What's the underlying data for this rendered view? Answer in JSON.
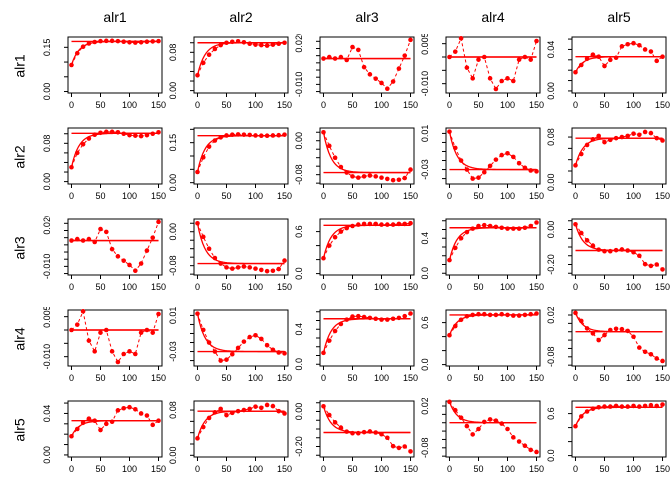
{
  "chart_data": {
    "type": "line",
    "layout": "5x5-pairwise-matrix",
    "col_titles": [
      "alr1",
      "alr2",
      "alr3",
      "alr4",
      "alr5"
    ],
    "row_titles": [
      "alr1",
      "alr2",
      "alr3",
      "alr4",
      "alr5"
    ],
    "x": [
      0,
      10,
      20,
      30,
      40,
      50,
      60,
      70,
      80,
      90,
      100,
      110,
      120,
      130,
      140,
      150
    ],
    "xticks": [
      0,
      50,
      100,
      150
    ],
    "xtick_labels": [
      "0",
      "50",
      "100",
      "150"
    ],
    "xlim": [
      -6,
      156
    ],
    "point_color": "#ff0000",
    "line_color": "#ff0000",
    "axis_color": "#000000",
    "grid": false,
    "legend": "none",
    "cells": [
      {
        "row": "alr1",
        "col": "alr1",
        "ylim": [
          -0.005,
          0.185
        ],
        "ytick_step": 0.05,
        "ylabels": [
          [
            "0.00",
            0
          ],
          [
            "0.15",
            0.15
          ]
        ],
        "ref": 0.17,
        "values": [
          0.09,
          0.13,
          0.152,
          0.163,
          0.168,
          0.171,
          0.172,
          0.172,
          0.171,
          0.169,
          0.167,
          0.166,
          0.167,
          0.169,
          0.17,
          0.171
        ]
      },
      {
        "row": "alr1",
        "col": "alr2",
        "ylim": [
          -0.005,
          0.112
        ],
        "ytick_step": 0.02,
        "ylabels": [
          [
            "0.00",
            0
          ],
          [
            "0.08",
            0.08
          ]
        ],
        "ref": 0.1,
        "values": [
          0.032,
          0.058,
          0.075,
          0.087,
          0.095,
          0.1,
          0.102,
          0.103,
          0.101,
          0.098,
          0.096,
          0.095,
          0.094,
          0.096,
          0.098,
          0.1
        ]
      },
      {
        "row": "alr1",
        "col": "alr3",
        "ylim": [
          -0.016,
          0.023
        ],
        "ytick_step": 0.005,
        "ylabels": [
          [
            "-0.010",
            -0.01
          ],
          [
            "0.020",
            0.02
          ]
        ],
        "ref": 0.008,
        "values": [
          0.008,
          0.009,
          0.008,
          0.009,
          0.007,
          0.016,
          0.014,
          0.002,
          -0.003,
          -0.006,
          -0.009,
          -0.013,
          -0.008,
          0.001,
          0.01,
          0.021
        ]
      },
      {
        "row": "alr1",
        "col": "alr4",
        "ylim": [
          -0.0135,
          0.0075
        ],
        "ytick_step": 0.005,
        "ylabels": [
          [
            "-0.010",
            -0.01
          ],
          [
            "0.005",
            0.005
          ]
        ],
        "ref": 0.0,
        "values": [
          0.0,
          0.002,
          0.007,
          -0.004,
          -0.008,
          -0.001,
          0.0,
          -0.008,
          -0.012,
          -0.009,
          -0.008,
          -0.009,
          -0.001,
          0.0,
          -0.001,
          0.006
        ]
      },
      {
        "row": "alr1",
        "col": "alr5",
        "ylim": [
          -0.002,
          0.052
        ],
        "ytick_step": 0.01,
        "ylabels": [
          [
            "0.00",
            0
          ],
          [
            "0.04",
            0.04
          ]
        ],
        "ref": 0.033,
        "values": [
          0.018,
          0.025,
          0.031,
          0.035,
          0.033,
          0.024,
          0.03,
          0.032,
          0.043,
          0.045,
          0.046,
          0.044,
          0.04,
          0.038,
          0.029,
          0.033
        ]
      },
      {
        "row": "alr2",
        "col": "alr1",
        "ylim": [
          -0.005,
          0.112
        ],
        "ytick_step": 0.02,
        "ylabels": [
          [
            "0.00",
            0
          ],
          [
            "0.08",
            0.08
          ]
        ],
        "ref": 0.101,
        "values": [
          0.03,
          0.06,
          0.078,
          0.09,
          0.098,
          0.102,
          0.104,
          0.104,
          0.103,
          0.1,
          0.097,
          0.096,
          0.095,
          0.097,
          0.1,
          0.103
        ]
      },
      {
        "row": "alr2",
        "col": "alr2",
        "ylim": [
          -0.005,
          0.205
        ],
        "ytick_step": 0.05,
        "ylabels": [
          [
            "0.00",
            0
          ],
          [
            "0.15",
            0.15
          ]
        ],
        "ref": 0.176,
        "values": [
          0.04,
          0.095,
          0.135,
          0.158,
          0.17,
          0.177,
          0.18,
          0.181,
          0.18,
          0.179,
          0.177,
          0.176,
          0.176,
          0.177,
          0.178,
          0.18
        ]
      },
      {
        "row": "alr2",
        "col": "alr3",
        "ylim": [
          -0.102,
          0.03
        ],
        "ytick_step": 0.02,
        "ylabels": [
          [
            "-0.08",
            -0.08
          ],
          [
            "0.00",
            0
          ]
        ],
        "ref": -0.075,
        "values": [
          0.02,
          -0.012,
          -0.04,
          -0.062,
          -0.075,
          -0.084,
          -0.087,
          -0.084,
          -0.082,
          -0.084,
          -0.087,
          -0.09,
          -0.093,
          -0.092,
          -0.088,
          -0.068
        ]
      },
      {
        "row": "alr2",
        "col": "alr4",
        "ylim": [
          -0.046,
          0.016
        ],
        "ytick_step": 0.01,
        "ylabels": [
          [
            "-0.03",
            -0.03
          ],
          [
            "0.01",
            0.01
          ]
        ],
        "ref": -0.03,
        "values": [
          0.012,
          -0.006,
          -0.02,
          -0.03,
          -0.04,
          -0.039,
          -0.033,
          -0.026,
          -0.019,
          -0.014,
          -0.012,
          -0.016,
          -0.023,
          -0.028,
          -0.031,
          -0.032
        ]
      },
      {
        "row": "alr2",
        "col": "alr5",
        "ylim": [
          -0.003,
          0.096
        ],
        "ytick_step": 0.02,
        "ylabels": [
          [
            "0.00",
            0
          ],
          [
            "0.08",
            0.08
          ]
        ],
        "ref": 0.078,
        "values": [
          0.03,
          0.05,
          0.066,
          0.076,
          0.082,
          0.071,
          0.075,
          0.078,
          0.08,
          0.082,
          0.086,
          0.084,
          0.089,
          0.087,
          0.078,
          0.074
        ]
      },
      {
        "row": "alr3",
        "col": "alr1",
        "ylim": [
          -0.016,
          0.023
        ],
        "ytick_step": 0.005,
        "ylabels": [
          [
            "-0.010",
            -0.01
          ],
          [
            "0.020",
            0.02
          ]
        ],
        "ref": 0.008,
        "values": [
          0.008,
          0.009,
          0.008,
          0.009,
          0.007,
          0.016,
          0.014,
          0.002,
          -0.003,
          -0.006,
          -0.009,
          -0.013,
          -0.008,
          0.001,
          0.01,
          0.021
        ]
      },
      {
        "row": "alr3",
        "col": "alr2",
        "ylim": [
          -0.102,
          0.03
        ],
        "ytick_step": 0.02,
        "ylabels": [
          [
            "-0.08",
            -0.08
          ],
          [
            "0.00",
            0
          ]
        ],
        "ref": -0.075,
        "values": [
          0.02,
          -0.012,
          -0.04,
          -0.062,
          -0.075,
          -0.084,
          -0.087,
          -0.084,
          -0.082,
          -0.084,
          -0.087,
          -0.09,
          -0.093,
          -0.092,
          -0.088,
          -0.068
        ]
      },
      {
        "row": "alr3",
        "col": "alr3",
        "ylim": [
          -0.02,
          0.78
        ],
        "ytick_step": 0.2,
        "ylabels": [
          [
            "0.0",
            0
          ],
          [
            "0.6",
            0.6
          ]
        ],
        "ref": 0.69,
        "values": [
          0.22,
          0.4,
          0.52,
          0.6,
          0.65,
          0.68,
          0.7,
          0.71,
          0.71,
          0.71,
          0.7,
          0.7,
          0.7,
          0.71,
          0.71,
          0.72
        ]
      },
      {
        "row": "alr3",
        "col": "alr4",
        "ylim": [
          -0.02,
          0.62
        ],
        "ytick_step": 0.1,
        "ylabels": [
          [
            "0.0",
            0
          ],
          [
            "0.4",
            0.4
          ]
        ],
        "ref": 0.52,
        "values": [
          0.15,
          0.29,
          0.4,
          0.47,
          0.51,
          0.54,
          0.55,
          0.54,
          0.53,
          0.52,
          0.51,
          0.51,
          0.51,
          0.52,
          0.54,
          0.58
        ]
      },
      {
        "row": "alr3",
        "col": "alr5",
        "ylim": [
          -0.26,
          0.06
        ],
        "ytick_step": 0.05,
        "ylabels": [
          [
            "-0.20",
            -0.2
          ],
          [
            "0.00",
            0
          ]
        ],
        "ref": -0.12,
        "values": [
          0.03,
          -0.02,
          -0.062,
          -0.092,
          -0.115,
          -0.124,
          -0.124,
          -0.118,
          -0.114,
          -0.12,
          -0.13,
          -0.15,
          -0.198,
          -0.208,
          -0.2,
          -0.228
        ]
      },
      {
        "row": "alr4",
        "col": "alr1",
        "ylim": [
          -0.0135,
          0.0075
        ],
        "ytick_step": 0.005,
        "ylabels": [
          [
            "-0.010",
            -0.01
          ],
          [
            "0.005",
            0.005
          ]
        ],
        "ref": 0.0,
        "values": [
          0.0,
          0.002,
          0.007,
          -0.004,
          -0.008,
          -0.001,
          0.0,
          -0.008,
          -0.012,
          -0.009,
          -0.008,
          -0.009,
          -0.001,
          0.0,
          -0.001,
          0.006
        ]
      },
      {
        "row": "alr4",
        "col": "alr2",
        "ylim": [
          -0.046,
          0.016
        ],
        "ytick_step": 0.01,
        "ylabels": [
          [
            "-0.03",
            -0.03
          ],
          [
            "0.01",
            0.01
          ]
        ],
        "ref": -0.03,
        "values": [
          0.012,
          -0.006,
          -0.02,
          -0.03,
          -0.04,
          -0.039,
          -0.033,
          -0.026,
          -0.019,
          -0.014,
          -0.012,
          -0.016,
          -0.023,
          -0.028,
          -0.031,
          -0.032
        ]
      },
      {
        "row": "alr4",
        "col": "alr3",
        "ylim": [
          -0.02,
          0.62
        ],
        "ytick_step": 0.1,
        "ylabels": [
          [
            "0.0",
            0
          ],
          [
            "0.4",
            0.4
          ]
        ],
        "ref": 0.52,
        "values": [
          0.13,
          0.27,
          0.38,
          0.46,
          0.51,
          0.545,
          0.55,
          0.54,
          0.53,
          0.52,
          0.51,
          0.51,
          0.52,
          0.53,
          0.55,
          0.58
        ]
      },
      {
        "row": "alr4",
        "col": "alr4",
        "ylim": [
          -0.02,
          0.78
        ],
        "ytick_step": 0.2,
        "ylabels": [
          [
            "0.0",
            0
          ],
          [
            "0.6",
            0.6
          ]
        ],
        "ref": 0.71,
        "values": [
          0.42,
          0.55,
          0.64,
          0.69,
          0.71,
          0.72,
          0.72,
          0.71,
          0.71,
          0.72,
          0.71,
          0.7,
          0.7,
          0.71,
          0.72,
          0.73
        ]
      },
      {
        "row": "alr4",
        "col": "alr5",
        "ylim": [
          -0.102,
          0.032
        ],
        "ytick_step": 0.02,
        "ylabels": [
          [
            "-0.08",
            -0.08
          ],
          [
            "0.02",
            0.02
          ]
        ],
        "ref": -0.02,
        "values": [
          0.025,
          0.006,
          -0.012,
          -0.024,
          -0.04,
          -0.028,
          -0.016,
          -0.013,
          -0.014,
          -0.018,
          -0.032,
          -0.058,
          -0.068,
          -0.074,
          -0.084,
          -0.09
        ]
      },
      {
        "row": "alr5",
        "col": "alr1",
        "ylim": [
          -0.002,
          0.052
        ],
        "ytick_step": 0.01,
        "ylabels": [
          [
            "0.00",
            0
          ],
          [
            "0.04",
            0.04
          ]
        ],
        "ref": 0.033,
        "values": [
          0.018,
          0.025,
          0.031,
          0.035,
          0.033,
          0.024,
          0.03,
          0.032,
          0.043,
          0.045,
          0.046,
          0.044,
          0.04,
          0.038,
          0.029,
          0.033
        ]
      },
      {
        "row": "alr5",
        "col": "alr2",
        "ylim": [
          -0.003,
          0.096
        ],
        "ytick_step": 0.02,
        "ylabels": [
          [
            "0.00",
            0
          ],
          [
            "0.08",
            0.08
          ]
        ],
        "ref": 0.078,
        "values": [
          0.03,
          0.05,
          0.066,
          0.076,
          0.082,
          0.071,
          0.075,
          0.078,
          0.08,
          0.082,
          0.086,
          0.084,
          0.089,
          0.087,
          0.078,
          0.074
        ]
      },
      {
        "row": "alr5",
        "col": "alr3",
        "ylim": [
          -0.26,
          0.06
        ],
        "ytick_step": 0.05,
        "ylabels": [
          [
            "-0.20",
            -0.2
          ],
          [
            "0.00",
            0
          ]
        ],
        "ref": -0.12,
        "values": [
          0.03,
          -0.02,
          -0.062,
          -0.092,
          -0.115,
          -0.124,
          -0.124,
          -0.118,
          -0.114,
          -0.12,
          -0.13,
          -0.15,
          -0.198,
          -0.208,
          -0.2,
          -0.228
        ]
      },
      {
        "row": "alr5",
        "col": "alr4",
        "ylim": [
          -0.102,
          0.032
        ],
        "ytick_step": 0.02,
        "ylabels": [
          [
            "-0.08",
            -0.08
          ],
          [
            "0.02",
            0.02
          ]
        ],
        "ref": -0.02,
        "values": [
          0.03,
          0.01,
          -0.008,
          -0.028,
          -0.048,
          -0.035,
          -0.018,
          -0.012,
          -0.015,
          -0.022,
          -0.035,
          -0.055,
          -0.065,
          -0.075,
          -0.085,
          -0.09
        ]
      },
      {
        "row": "alr5",
        "col": "alr5",
        "ylim": [
          -0.02,
          0.78
        ],
        "ytick_step": 0.2,
        "ylabels": [
          [
            "0.0",
            0
          ],
          [
            "0.6",
            0.6
          ]
        ],
        "ref": 0.69,
        "values": [
          0.42,
          0.56,
          0.63,
          0.67,
          0.69,
          0.7,
          0.7,
          0.71,
          0.7,
          0.7,
          0.71,
          0.7,
          0.71,
          0.72,
          0.71,
          0.73
        ]
      }
    ]
  }
}
